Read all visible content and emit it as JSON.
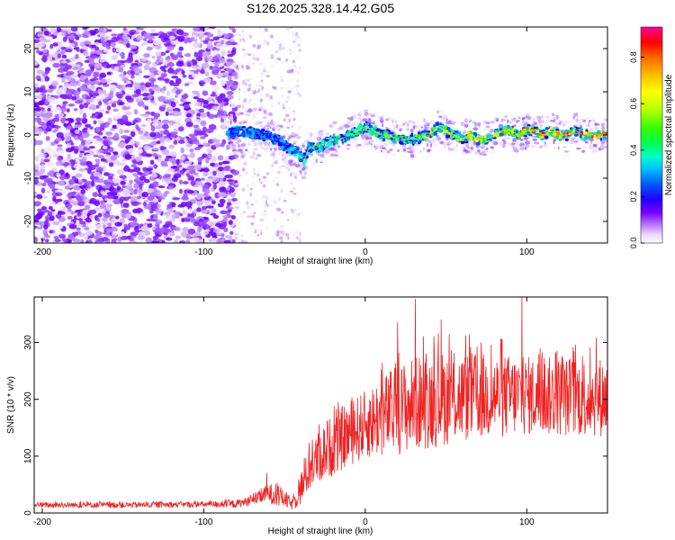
{
  "title": "S126.2025.328.14.42.G05",
  "chart_data": [
    {
      "type": "heatmap",
      "name": "spectrogram",
      "xlabel": "Height of straight line (km)",
      "ylabel": "Frequency (Hz)",
      "xlim": [
        -205,
        150
      ],
      "ylim": [
        -25,
        25
      ],
      "xticks": [
        -200,
        -100,
        0,
        100
      ],
      "yticks": [
        -20,
        -10,
        0,
        10,
        20
      ],
      "ridge_x": [
        -85,
        -78,
        -70,
        -62,
        -55,
        -48,
        -42,
        -38,
        -35,
        -30,
        -25,
        -20,
        -15,
        -10,
        -5,
        0,
        5,
        10,
        15,
        20,
        25,
        30,
        35,
        40,
        45,
        50,
        55,
        60,
        65,
        70,
        75,
        80,
        85,
        90,
        95,
        100,
        105,
        110,
        115,
        120,
        125,
        130,
        135,
        140,
        145,
        150
      ],
      "ridge_freq": [
        0.5,
        1,
        0.5,
        0,
        -1,
        -3,
        -4,
        -6,
        -3,
        -3,
        -2,
        -1,
        -1,
        0,
        1,
        2,
        1,
        0,
        0,
        -1,
        -1,
        -1,
        -0.5,
        0,
        2,
        1,
        0,
        -1,
        0,
        -1,
        -1,
        0,
        1,
        1,
        0,
        1,
        1,
        0,
        1,
        0,
        0,
        1,
        0,
        0,
        0,
        0
      ],
      "colorbar": {
        "label": "Normalized spectral amplitude",
        "range": [
          0,
          0.93
        ],
        "ticks": [
          0.0,
          0.2,
          0.4,
          0.6,
          0.8
        ],
        "tick_labels": [
          "0.0",
          "0.2",
          "0.4",
          "0.6",
          "0.8"
        ],
        "colors": [
          "#ffffff",
          "#e9d6ff",
          "#b46cff",
          "#7a00ff",
          "#2200ff",
          "#0055ff",
          "#00bbff",
          "#00ffcc",
          "#00ff55",
          "#33ff00",
          "#bbff00",
          "#ffff00",
          "#ffbb00",
          "#ff6600",
          "#ff0000",
          "#ff0099"
        ]
      }
    },
    {
      "type": "line",
      "name": "snr",
      "xlabel": "Height of straight line (km)",
      "ylabel": "SNR (10 * v/v)",
      "xlim": [
        -205,
        150
      ],
      "ylim": [
        0,
        380
      ],
      "xticks": [
        -200,
        -100,
        0,
        100
      ],
      "yticks": [
        0,
        100,
        200,
        300
      ],
      "color": "#ee2222",
      "trend_x": [
        -205,
        -150,
        -100,
        -80,
        -70,
        -60,
        -52,
        -45,
        -40,
        -35,
        -30,
        -25,
        -20,
        -10,
        0,
        10,
        20,
        30,
        40,
        50,
        60,
        70,
        80,
        90,
        100,
        110,
        120,
        130,
        140,
        150
      ],
      "trend_y": [
        14,
        14,
        15,
        16,
        22,
        35,
        28,
        15,
        42,
        75,
        95,
        108,
        120,
        140,
        155,
        170,
        182,
        192,
        198,
        202,
        204,
        205,
        206,
        206,
        206,
        205,
        205,
        204,
        204,
        204
      ],
      "amplitude_x": [
        -205,
        -100,
        -70,
        -55,
        -45,
        -40,
        -30,
        -20,
        0,
        20,
        40,
        60,
        80,
        100,
        150
      ],
      "amplitude_y": [
        5,
        5,
        8,
        20,
        10,
        30,
        45,
        55,
        60,
        80,
        85,
        80,
        75,
        70,
        70
      ],
      "peaks": [
        {
          "x": 31,
          "y": 376
        },
        {
          "x": 97,
          "y": 380
        },
        {
          "x": 47,
          "y": 340
        },
        {
          "x": 143,
          "y": 308
        },
        {
          "x": 20,
          "y": 335
        },
        {
          "x": -61,
          "y": 70
        }
      ]
    }
  ]
}
